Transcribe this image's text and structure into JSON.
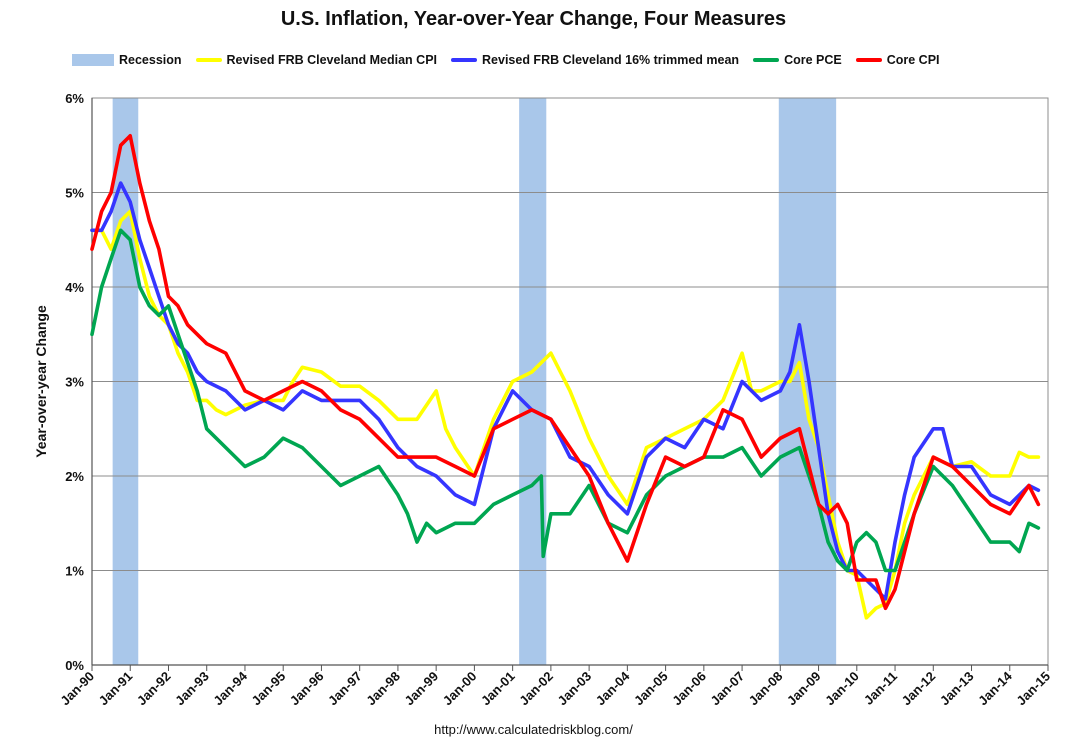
{
  "chart_data": {
    "type": "line",
    "title": "U.S. Inflation, Year-over-Year Change, Four Measures",
    "ylabel": "Year-over-year Change",
    "xlabel": "",
    "source": "http://www.calculatedriskblog.com/",
    "ylim": [
      0,
      6
    ],
    "xlim": [
      1990.0,
      2015.0
    ],
    "grid": true,
    "legend_position": "top",
    "y_ticks": [
      "0%",
      "1%",
      "2%",
      "3%",
      "4%",
      "5%",
      "6%"
    ],
    "x_ticks": [
      "Jan-90",
      "Jan-91",
      "Jan-92",
      "Jan-93",
      "Jan-94",
      "Jan-95",
      "Jan-96",
      "Jan-97",
      "Jan-98",
      "Jan-99",
      "Jan-00",
      "Jan-01",
      "Jan-02",
      "Jan-03",
      "Jan-04",
      "Jan-05",
      "Jan-06",
      "Jan-07",
      "Jan-08",
      "Jan-09",
      "Jan-10",
      "Jan-11",
      "Jan-12",
      "Jan-13",
      "Jan-14",
      "Jan-15"
    ],
    "recessions": [
      {
        "start": 1990.54,
        "end": 1991.21
      },
      {
        "start": 2001.17,
        "end": 2001.88
      },
      {
        "start": 2007.96,
        "end": 2009.46
      }
    ],
    "legend": [
      {
        "label": "Recession",
        "kind": "box",
        "color": "#a9c7ea"
      },
      {
        "label": "Revised FRB Cleveland Median CPI",
        "kind": "line",
        "color": "#ffff00"
      },
      {
        "label": "Revised FRB Cleveland 16% trimmed mean",
        "kind": "line",
        "color": "#3535ff"
      },
      {
        "label": "Core PCE",
        "kind": "line",
        "color": "#00a651"
      },
      {
        "label": "Core CPI",
        "kind": "line",
        "color": "#ff0000"
      }
    ],
    "series": [
      {
        "name": "Revised FRB Cleveland Median CPI",
        "color": "#ffff00",
        "x": [
          1990.0,
          1990.25,
          1990.5,
          1990.75,
          1991.0,
          1991.25,
          1991.5,
          1991.75,
          1992.0,
          1992.25,
          1992.5,
          1992.75,
          1993.0,
          1993.25,
          1993.5,
          1993.75,
          1994.0,
          1994.5,
          1995.0,
          1995.25,
          1995.5,
          1996.0,
          1996.5,
          1997.0,
          1997.5,
          1998.0,
          1998.5,
          1999.0,
          1999.25,
          1999.5,
          2000.0,
          2000.5,
          2001.0,
          2001.5,
          2002.0,
          2002.25,
          2002.5,
          2003.0,
          2003.5,
          2004.0,
          2004.5,
          2005.0,
          2005.5,
          2006.0,
          2006.5,
          2007.0,
          2007.25,
          2007.5,
          2008.0,
          2008.25,
          2008.5,
          2008.75,
          2009.0,
          2009.25,
          2009.5,
          2009.75,
          2010.0,
          2010.25,
          2010.5,
          2010.75,
          2011.0,
          2011.25,
          2011.5,
          2012.0,
          2012.5,
          2013.0,
          2013.5,
          2014.0,
          2014.25,
          2014.5,
          2014.75
        ],
        "y": [
          4.6,
          4.6,
          4.4,
          4.7,
          4.8,
          4.3,
          3.9,
          3.7,
          3.6,
          3.3,
          3.1,
          2.8,
          2.8,
          2.7,
          2.65,
          2.7,
          2.75,
          2.8,
          2.8,
          3.0,
          3.15,
          3.1,
          2.95,
          2.95,
          2.8,
          2.6,
          2.6,
          2.9,
          2.5,
          2.3,
          2.0,
          2.6,
          3.0,
          3.1,
          3.3,
          3.1,
          2.9,
          2.4,
          2.0,
          1.7,
          2.3,
          2.4,
          2.5,
          2.6,
          2.8,
          3.3,
          2.9,
          2.9,
          3.0,
          3.0,
          3.2,
          2.6,
          2.3,
          1.8,
          1.3,
          1.0,
          0.95,
          0.5,
          0.6,
          0.65,
          1.0,
          1.5,
          1.8,
          2.2,
          2.1,
          2.15,
          2.0,
          2.0,
          2.25,
          2.2,
          2.2
        ]
      },
      {
        "name": "Revised FRB Cleveland 16% trimmed mean",
        "color": "#3535ff",
        "x": [
          1990.0,
          1990.25,
          1990.5,
          1990.75,
          1991.0,
          1991.25,
          1991.5,
          1991.75,
          1992.0,
          1992.25,
          1992.5,
          1992.75,
          1993.0,
          1993.5,
          1994.0,
          1994.5,
          1995.0,
          1995.25,
          1995.5,
          1996.0,
          1996.5,
          1997.0,
          1997.5,
          1998.0,
          1998.5,
          1999.0,
          1999.5,
          2000.0,
          2000.5,
          2001.0,
          2001.5,
          2002.0,
          2002.5,
          2003.0,
          2003.5,
          2004.0,
          2004.5,
          2005.0,
          2005.5,
          2006.0,
          2006.5,
          2007.0,
          2007.5,
          2008.0,
          2008.25,
          2008.5,
          2008.75,
          2009.0,
          2009.25,
          2009.5,
          2009.75,
          2010.0,
          2010.5,
          2010.75,
          2011.0,
          2011.25,
          2011.5,
          2012.0,
          2012.25,
          2012.5,
          2013.0,
          2013.5,
          2014.0,
          2014.5,
          2014.75
        ],
        "y": [
          4.6,
          4.6,
          4.8,
          5.1,
          4.9,
          4.5,
          4.2,
          3.9,
          3.6,
          3.4,
          3.3,
          3.1,
          3.0,
          2.9,
          2.7,
          2.8,
          2.7,
          2.8,
          2.9,
          2.8,
          2.8,
          2.8,
          2.6,
          2.3,
          2.1,
          2.0,
          1.8,
          1.7,
          2.5,
          2.9,
          2.7,
          2.6,
          2.2,
          2.1,
          1.8,
          1.6,
          2.2,
          2.4,
          2.3,
          2.6,
          2.5,
          3.0,
          2.8,
          2.9,
          3.1,
          3.6,
          3.0,
          2.3,
          1.6,
          1.2,
          1.0,
          1.0,
          0.8,
          0.7,
          1.3,
          1.8,
          2.2,
          2.5,
          2.5,
          2.1,
          2.1,
          1.8,
          1.7,
          1.9,
          1.85
        ]
      },
      {
        "name": "Core PCE",
        "color": "#00a651",
        "x": [
          1990.0,
          1990.25,
          1990.5,
          1990.75,
          1991.0,
          1991.25,
          1991.5,
          1991.75,
          1992.0,
          1992.25,
          1992.5,
          1992.75,
          1993.0,
          1993.5,
          1994.0,
          1994.5,
          1995.0,
          1995.5,
          1996.0,
          1996.5,
          1997.0,
          1997.5,
          1998.0,
          1998.25,
          1998.5,
          1998.75,
          1999.0,
          1999.5,
          2000.0,
          2000.5,
          2001.0,
          2001.5,
          2001.75,
          2001.8,
          2002.0,
          2002.5,
          2003.0,
          2003.5,
          2004.0,
          2004.5,
          2005.0,
          2005.5,
          2006.0,
          2006.5,
          2007.0,
          2007.5,
          2008.0,
          2008.5,
          2009.0,
          2009.25,
          2009.5,
          2009.75,
          2010.0,
          2010.25,
          2010.5,
          2010.75,
          2011.0,
          2011.5,
          2012.0,
          2012.5,
          2013.0,
          2013.5,
          2014.0,
          2014.25,
          2014.5,
          2014.75
        ],
        "y": [
          3.5,
          4.0,
          4.3,
          4.6,
          4.5,
          4.0,
          3.8,
          3.7,
          3.8,
          3.5,
          3.2,
          2.9,
          2.5,
          2.3,
          2.1,
          2.2,
          2.4,
          2.3,
          2.1,
          1.9,
          2.0,
          2.1,
          1.8,
          1.6,
          1.3,
          1.5,
          1.4,
          1.5,
          1.5,
          1.7,
          1.8,
          1.9,
          2.0,
          1.15,
          1.6,
          1.6,
          1.9,
          1.5,
          1.4,
          1.8,
          2.0,
          2.1,
          2.2,
          2.2,
          2.3,
          2.0,
          2.2,
          2.3,
          1.7,
          1.3,
          1.1,
          1.0,
          1.3,
          1.4,
          1.3,
          1.0,
          1.0,
          1.6,
          2.1,
          1.9,
          1.6,
          1.3,
          1.3,
          1.2,
          1.5,
          1.45
        ]
      },
      {
        "name": "Core CPI",
        "color": "#ff0000",
        "x": [
          1990.0,
          1990.25,
          1990.5,
          1990.75,
          1991.0,
          1991.25,
          1991.5,
          1991.75,
          1992.0,
          1992.25,
          1992.5,
          1992.75,
          1993.0,
          1993.5,
          1994.0,
          1994.5,
          1995.0,
          1995.5,
          1996.0,
          1996.5,
          1997.0,
          1997.5,
          1998.0,
          1998.5,
          1999.0,
          1999.5,
          2000.0,
          2000.5,
          2001.0,
          2001.5,
          2002.0,
          2002.5,
          2003.0,
          2003.5,
          2004.0,
          2004.5,
          2005.0,
          2005.5,
          2006.0,
          2006.5,
          2007.0,
          2007.5,
          2008.0,
          2008.5,
          2009.0,
          2009.25,
          2009.5,
          2009.75,
          2010.0,
          2010.5,
          2010.75,
          2011.0,
          2011.5,
          2012.0,
          2012.5,
          2013.0,
          2013.5,
          2014.0,
          2014.5,
          2014.75
        ],
        "y": [
          4.4,
          4.8,
          5.0,
          5.5,
          5.6,
          5.1,
          4.7,
          4.4,
          3.9,
          3.8,
          3.6,
          3.5,
          3.4,
          3.3,
          2.9,
          2.8,
          2.9,
          3.0,
          2.9,
          2.7,
          2.6,
          2.4,
          2.2,
          2.2,
          2.2,
          2.1,
          2.0,
          2.5,
          2.6,
          2.7,
          2.6,
          2.3,
          2.0,
          1.5,
          1.1,
          1.7,
          2.2,
          2.1,
          2.2,
          2.7,
          2.6,
          2.2,
          2.4,
          2.5,
          1.7,
          1.6,
          1.7,
          1.5,
          0.9,
          0.9,
          0.6,
          0.8,
          1.6,
          2.2,
          2.1,
          1.9,
          1.7,
          1.6,
          1.9,
          1.7
        ]
      }
    ]
  }
}
